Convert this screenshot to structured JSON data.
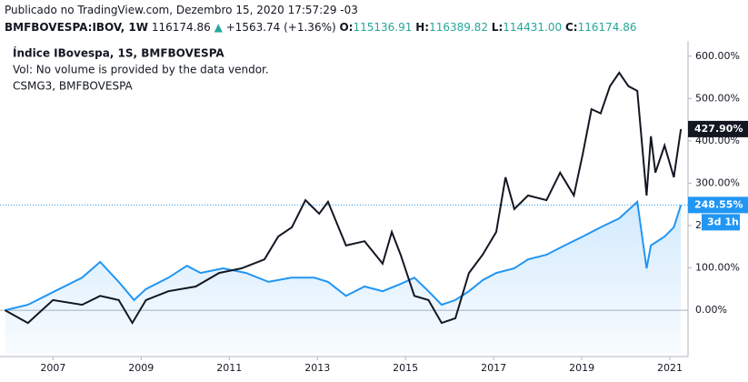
{
  "header": {
    "published": "Publicado no TradingView.com, Dezembro 15, 2020 17:57:29 -03",
    "symbol": "BMFBOVESPA:IBOV, 1W",
    "last": "116174.86",
    "arrow": "▲",
    "change": "+1563.74 (+1.36%)",
    "o_label": "O:",
    "o": "115136.91",
    "h_label": "H:",
    "h": "116389.82",
    "l_label": "L:",
    "l": "114431.00",
    "c_label": "C:",
    "c": "116174.86"
  },
  "chart_data": {
    "type": "line",
    "legend_lines": [
      "Índice IBovespa, 1S, BMFBOVESPA",
      "Vol: No volume is provided by the data vendor.",
      "CSMG3, BMFBOVESPA"
    ],
    "countdown": "3d 1h",
    "xlim": [
      2005.9,
      2021.37
    ],
    "xticks": [
      2007,
      2009,
      2011,
      2013,
      2015,
      2017,
      2019,
      2021
    ],
    "ylim": [
      -105,
      636
    ],
    "yticks": [
      {
        "value": 0,
        "label": "0.00%"
      },
      {
        "value": 100,
        "label": "100.00%"
      },
      {
        "value": 200,
        "label": "200.00%"
      },
      {
        "value": 300,
        "label": "300.00%"
      },
      {
        "value": 400,
        "label": "400.00%"
      },
      {
        "value": 500,
        "label": "500.00%"
      },
      {
        "value": 600,
        "label": "600.00%"
      }
    ],
    "series": [
      {
        "name": "Índice IBovespa",
        "color": "#2196f3",
        "area": true,
        "last_label": "248.55%",
        "x": [
          2005.91,
          2006.43,
          2007.04,
          2007.66,
          2008.07,
          2008.49,
          2008.84,
          2009.11,
          2009.62,
          2010.04,
          2010.35,
          2010.86,
          2011.38,
          2011.89,
          2012.41,
          2012.93,
          2013.24,
          2013.65,
          2014.07,
          2014.48,
          2014.89,
          2015.2,
          2015.52,
          2015.82,
          2016.13,
          2016.44,
          2016.75,
          2017.06,
          2017.47,
          2017.78,
          2018.2,
          2018.61,
          2019.02,
          2019.43,
          2019.85,
          2020.26,
          2020.47,
          2020.57,
          2020.88,
          2021.09,
          2021.25
        ],
        "values": [
          0,
          13,
          45,
          77,
          114,
          67,
          24,
          50,
          77,
          105,
          88,
          99,
          88,
          67,
          77,
          77,
          67,
          34,
          56,
          45,
          62,
          77,
          45,
          13,
          24,
          45,
          71,
          88,
          99,
          120,
          131,
          153,
          174,
          196,
          217,
          256,
          99,
          153,
          174,
          196,
          248.55
        ]
      },
      {
        "name": "CSMG3",
        "color": "#131722",
        "last_label": "427.90%",
        "x": [
          2005.91,
          2006.43,
          2007,
          2007.66,
          2008.07,
          2008.49,
          2008.8,
          2009.11,
          2009.62,
          2010.24,
          2010.77,
          2011.28,
          2011.8,
          2012.11,
          2012.42,
          2012.73,
          2013.04,
          2013.24,
          2013.65,
          2014.07,
          2014.48,
          2014.69,
          2014.89,
          2015.2,
          2015.52,
          2015.82,
          2016.13,
          2016.44,
          2016.75,
          2017.06,
          2017.27,
          2017.47,
          2017.78,
          2018.2,
          2018.51,
          2018.82,
          2019.02,
          2019.22,
          2019.43,
          2019.64,
          2019.85,
          2020.06,
          2020.26,
          2020.47,
          2020.57,
          2020.67,
          2020.88,
          2021.09,
          2021.25
        ],
        "values": [
          0,
          -30,
          24,
          13,
          34,
          24,
          -30,
          24,
          45,
          56,
          88,
          99,
          120,
          174,
          196,
          260,
          228,
          256,
          153,
          163,
          110,
          185,
          131,
          34,
          24,
          -30,
          -19,
          88,
          131,
          185,
          314,
          239,
          271,
          260,
          325,
          271,
          368,
          475,
          465,
          529,
          561,
          529,
          518,
          271,
          411,
          325,
          389,
          314,
          427.9
        ]
      }
    ]
  }
}
